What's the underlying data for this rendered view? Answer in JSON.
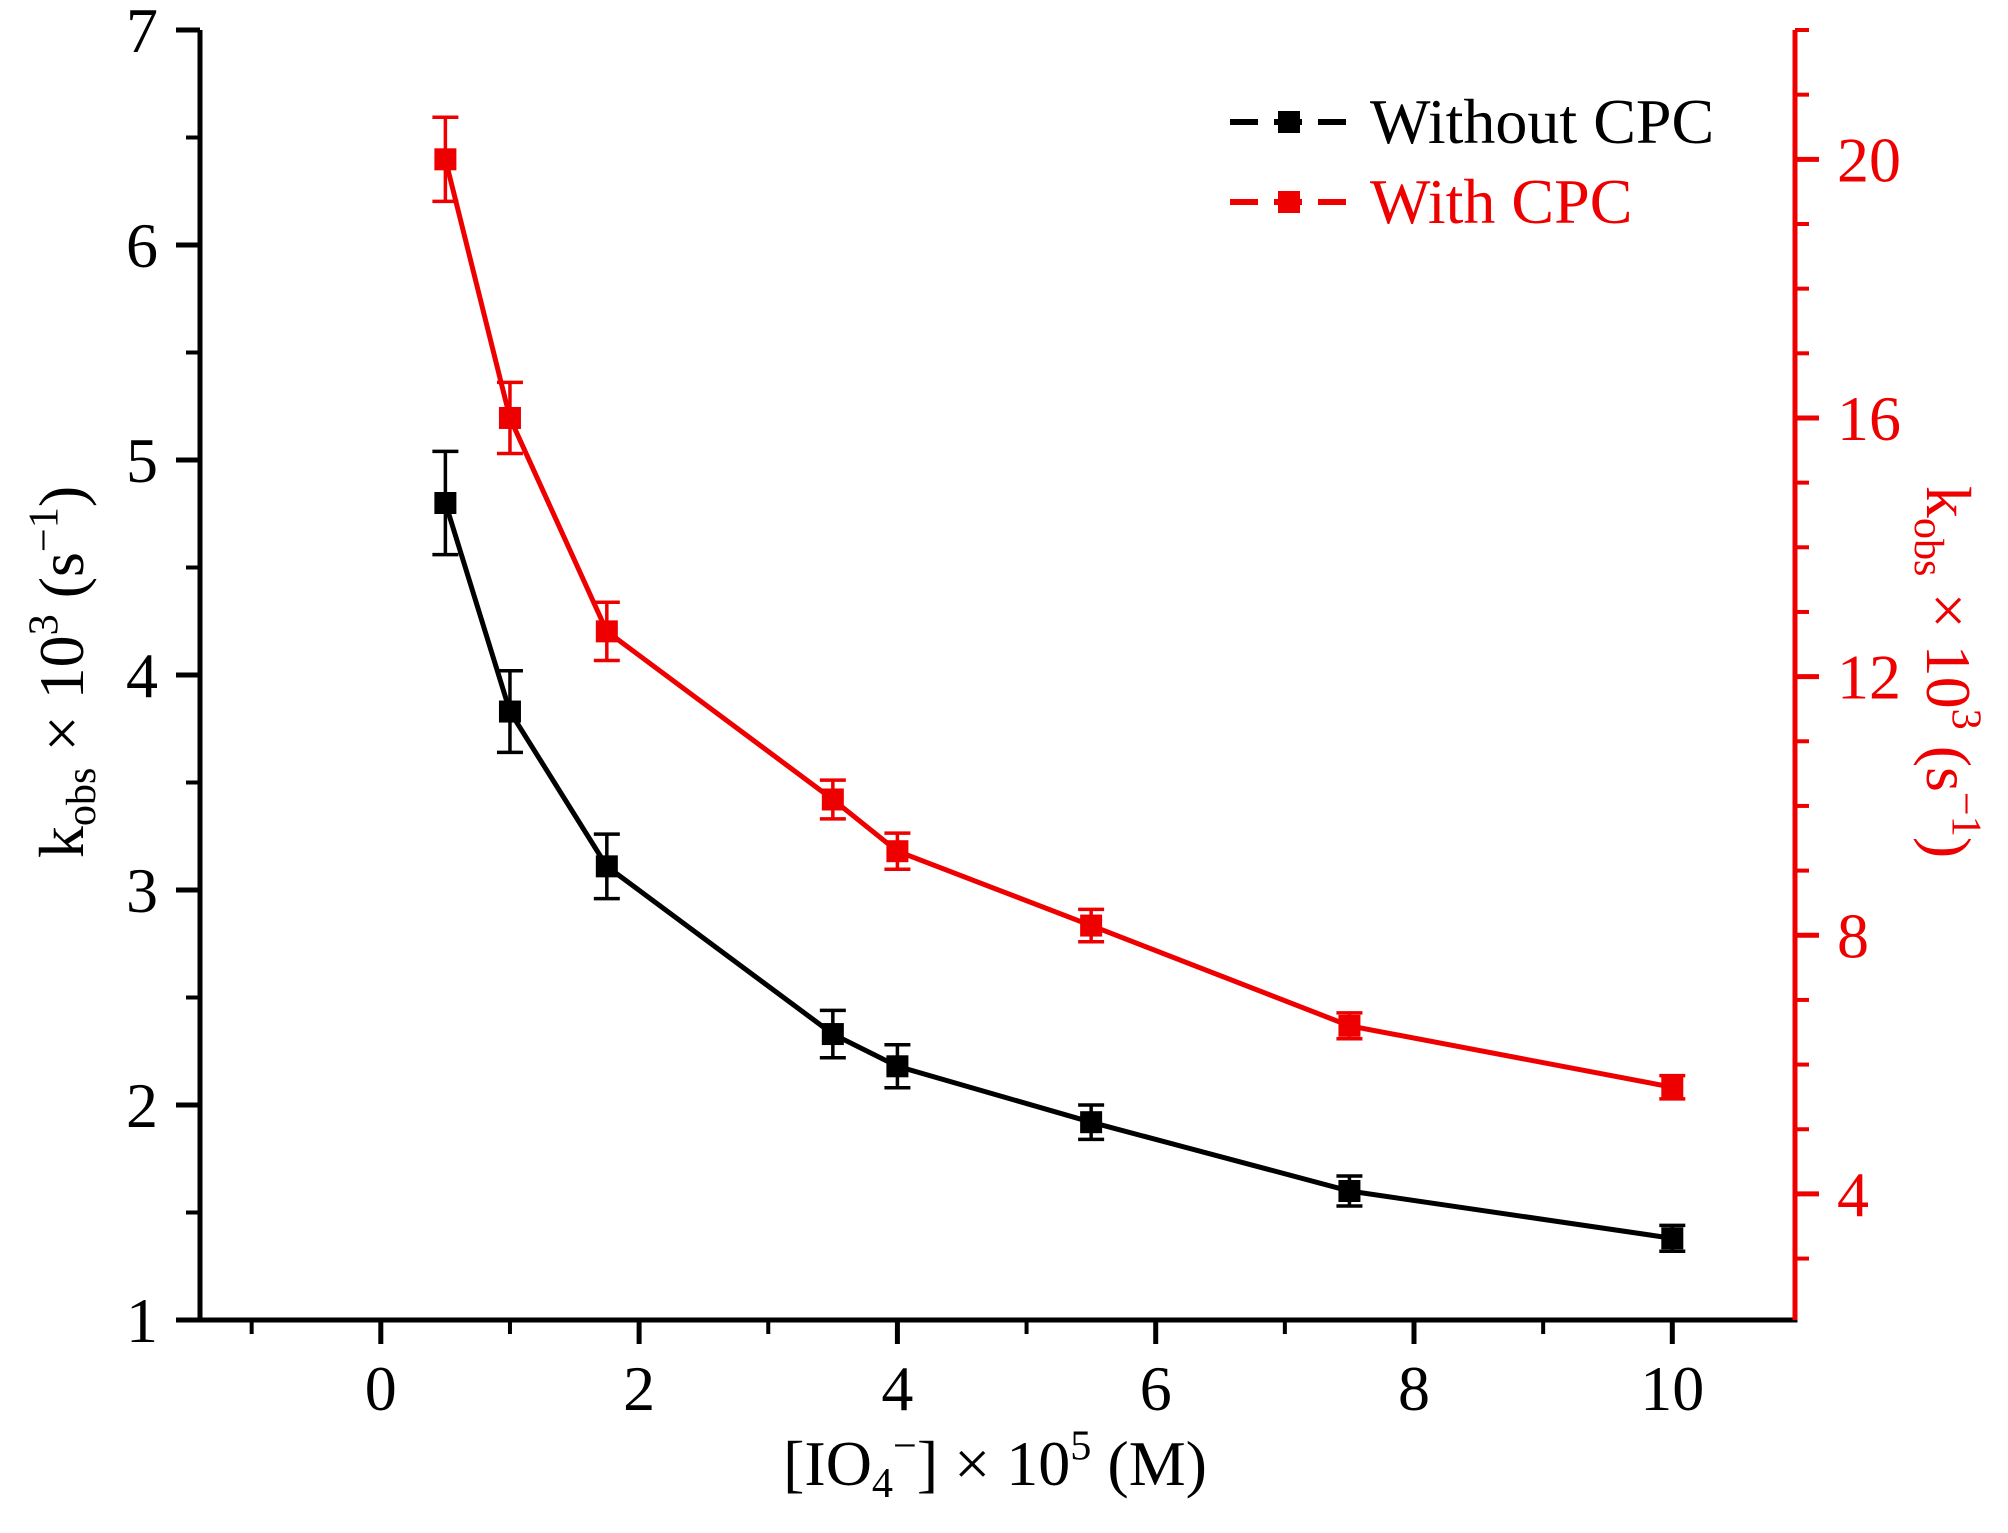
{
  "figure": {
    "colors": {
      "black": "#000000",
      "red": "#ee0000"
    },
    "legend": [
      {
        "label": "Without CPC",
        "color": "#000000"
      },
      {
        "label": "With CPC",
        "color": "#ee0000"
      }
    ],
    "axis_titles": {
      "left": {
        "p1": "k",
        "sub": "obs",
        "p2": " × 10",
        "sup": "3",
        "p3": " (s",
        "sup2": "−1",
        "p4": ")"
      },
      "right": {
        "p1": "k",
        "sub": "obs",
        "p2": " × 10",
        "sup": "3",
        "p3": " (s",
        "sup2": "−1",
        "p4": ")"
      },
      "bottom": {
        "p1": "[IO",
        "sub": "4",
        "sup": "−",
        "p2": "] × 10",
        "sup2": "5",
        "p3": " (M)"
      }
    }
  },
  "chart_data": {
    "type": "line",
    "title": "",
    "marker": "square",
    "error_bars": true,
    "grid": false,
    "legend_position": "top-right",
    "x": [
      0.5,
      1.0,
      1.75,
      3.5,
      4.0,
      5.5,
      7.5,
      10.0
    ],
    "series": [
      {
        "name": "Without CPC",
        "axis": "left",
        "color": "#000000",
        "values": [
          4.8,
          3.83,
          3.11,
          2.33,
          2.18,
          1.92,
          1.6,
          1.38
        ],
        "errors": [
          0.24,
          0.19,
          0.15,
          0.11,
          0.1,
          0.08,
          0.07,
          0.06
        ]
      },
      {
        "name": "With CPC",
        "axis": "right",
        "color": "#ee0000",
        "values": [
          20.0,
          16.0,
          12.7,
          10.1,
          9.3,
          8.15,
          6.6,
          5.65
        ],
        "errors": [
          0.65,
          0.55,
          0.45,
          0.3,
          0.28,
          0.25,
          0.2,
          0.18
        ]
      }
    ],
    "x_axis": {
      "label": "[IO4−] × 105 (M)",
      "min": -1.4,
      "max": 10.95,
      "major_ticks": [
        0,
        2,
        4,
        6,
        8,
        10
      ],
      "minor_ticks": [
        -1,
        1,
        3,
        5,
        7,
        9
      ]
    },
    "left_axis": {
      "label": "kobs × 103 (s−1)",
      "min": 1,
      "max": 7,
      "major_ticks": [
        1,
        2,
        3,
        4,
        5,
        6,
        7
      ],
      "minor_step": 0.5
    },
    "right_axis": {
      "label": "kobs × 103 (s−1)",
      "min": 2.05,
      "max": 22.0,
      "major_ticks": [
        4,
        8,
        12,
        16,
        20
      ],
      "minor_step": 1
    }
  }
}
